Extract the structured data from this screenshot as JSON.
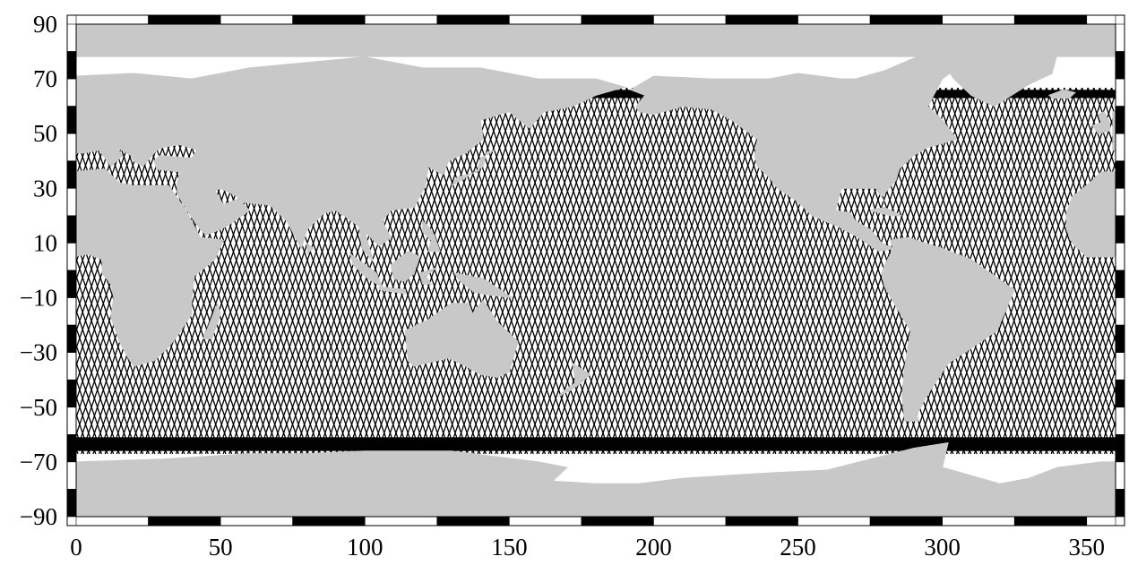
{
  "map": {
    "projection": "plate-carree",
    "region": {
      "lon": [
        0,
        360
      ],
      "lat": [
        -90,
        90
      ]
    },
    "colors": {
      "land": "#c8c8c8",
      "ocean": "#ffffff",
      "tracks": "#000000",
      "frame_dark": "#000000",
      "frame_light": "#ffffff"
    },
    "frame_interval_deg": {
      "lon": 25,
      "lat": 10
    },
    "track_coverage": {
      "lat_min": -66,
      "lat_max": 66,
      "pattern": "crossing ascending/descending satellite ground tracks"
    }
  },
  "axes": {
    "x_ticks": [
      "0",
      "50",
      "100",
      "150",
      "200",
      "250",
      "300",
      "350"
    ],
    "y_ticks": [
      "90",
      "70",
      "50",
      "30",
      "10",
      "−10",
      "−30",
      "−50",
      "−70",
      "−90"
    ]
  }
}
